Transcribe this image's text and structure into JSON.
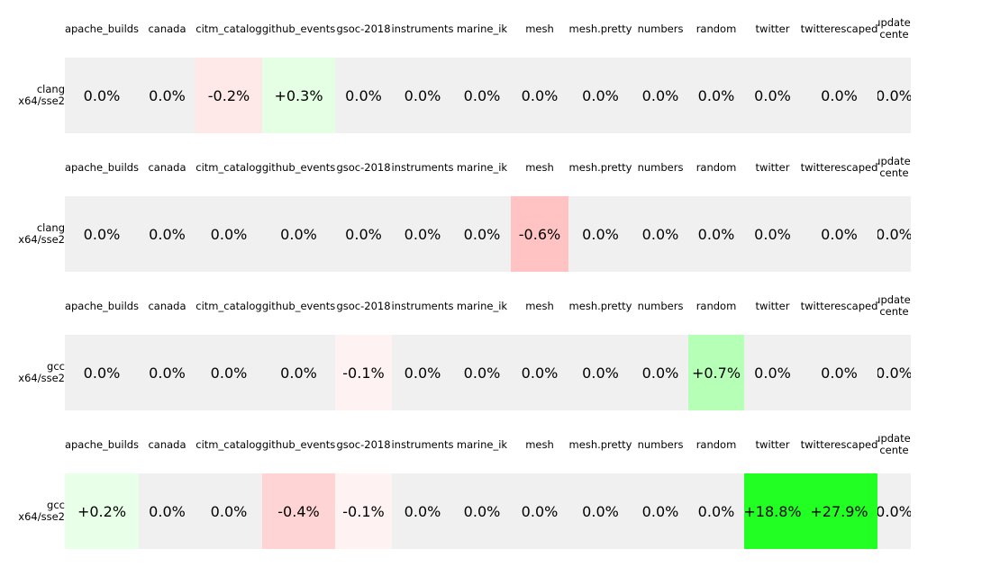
{
  "chart_data": {
    "type": "table",
    "title": "",
    "columns": [
      "apache_builds",
      "canada",
      "citm_catalog",
      "github_events",
      "gsoc-2018",
      "instruments",
      "marine_ik",
      "mesh",
      "mesh.pretty",
      "numbers",
      "random",
      "twitter",
      "twitterescaped",
      "update-\ncente"
    ],
    "tables": [
      {
        "row_label": [
          "clang",
          "x64/sse2"
        ],
        "values": [
          0.0,
          0.0,
          -0.2,
          0.3,
          0.0,
          0.0,
          0.0,
          0.0,
          0.0,
          0.0,
          0.0,
          0.0,
          0.0,
          0.0
        ],
        "labels": [
          "0.0%",
          "0.0%",
          "-0.2%",
          "+0.3%",
          "0.0%",
          "0.0%",
          "0.0%",
          "0.0%",
          "0.0%",
          "0.0%",
          "0.0%",
          "0.0%",
          "0.0%",
          "0.0%"
        ]
      },
      {
        "row_label": [
          "clang",
          "x64/sse2"
        ],
        "values": [
          0.0,
          0.0,
          0.0,
          0.0,
          0.0,
          0.0,
          0.0,
          -0.6,
          0.0,
          0.0,
          0.0,
          0.0,
          0.0,
          0.0
        ],
        "labels": [
          "0.0%",
          "0.0%",
          "0.0%",
          "0.0%",
          "0.0%",
          "0.0%",
          "0.0%",
          "-0.6%",
          "0.0%",
          "0.0%",
          "0.0%",
          "0.0%",
          "0.0%",
          "0.0%"
        ]
      },
      {
        "row_label": [
          "gcc",
          "x64/sse2"
        ],
        "values": [
          0.0,
          0.0,
          0.0,
          0.0,
          -0.1,
          0.0,
          0.0,
          0.0,
          0.0,
          0.0,
          0.7,
          0.0,
          0.0,
          0.0
        ],
        "labels": [
          "0.0%",
          "0.0%",
          "0.0%",
          "0.0%",
          "-0.1%",
          "0.0%",
          "0.0%",
          "0.0%",
          "0.0%",
          "0.0%",
          "+0.7%",
          "0.0%",
          "0.0%",
          "0.0%"
        ]
      },
      {
        "row_label": [
          "gcc",
          "x64/sse2"
        ],
        "values": [
          0.2,
          0.0,
          0.0,
          -0.4,
          -0.1,
          0.0,
          0.0,
          0.0,
          0.0,
          0.0,
          0.0,
          18.8,
          27.9,
          0.0
        ],
        "labels": [
          "+0.2%",
          "0.0%",
          "0.0%",
          "-0.4%",
          "-0.1%",
          "0.0%",
          "0.0%",
          "0.0%",
          "0.0%",
          "0.0%",
          "0.0%",
          "+18.8%",
          "+27.9%",
          "0.0%"
        ]
      }
    ],
    "cell_colors": [
      [
        "#f0f0f0",
        "#f0f0f0",
        "#ffe8e8",
        "#e4ffe4",
        "#f0f0f0",
        "#f0f0f0",
        "#f0f0f0",
        "#f0f0f0",
        "#f0f0f0",
        "#f0f0f0",
        "#f0f0f0",
        "#f0f0f0",
        "#f0f0f0",
        "#f0f0f0"
      ],
      [
        "#f0f0f0",
        "#f0f0f0",
        "#f0f0f0",
        "#f0f0f0",
        "#f0f0f0",
        "#f0f0f0",
        "#f0f0f0",
        "#ffc3c3",
        "#f0f0f0",
        "#f0f0f0",
        "#f0f0f0",
        "#f0f0f0",
        "#f0f0f0",
        "#f0f0f0"
      ],
      [
        "#f0f0f0",
        "#f0f0f0",
        "#f0f0f0",
        "#f0f0f0",
        "#fff2f2",
        "#f0f0f0",
        "#f0f0f0",
        "#f0f0f0",
        "#f0f0f0",
        "#f0f0f0",
        "#b6ffb6",
        "#f0f0f0",
        "#f0f0f0",
        "#f0f0f0"
      ],
      [
        "#e8ffe8",
        "#f0f0f0",
        "#f0f0f0",
        "#ffd4d4",
        "#fff2f2",
        "#f0f0f0",
        "#f0f0f0",
        "#f0f0f0",
        "#f0f0f0",
        "#f0f0f0",
        "#f0f0f0",
        "#22ff22",
        "#22ff22",
        "#f0f0f0"
      ]
    ],
    "colors": {
      "neutral": "#f0f0f0",
      "positive": "#22ff22",
      "negative": "#ffc3c3",
      "background": "#ffffff"
    }
  }
}
